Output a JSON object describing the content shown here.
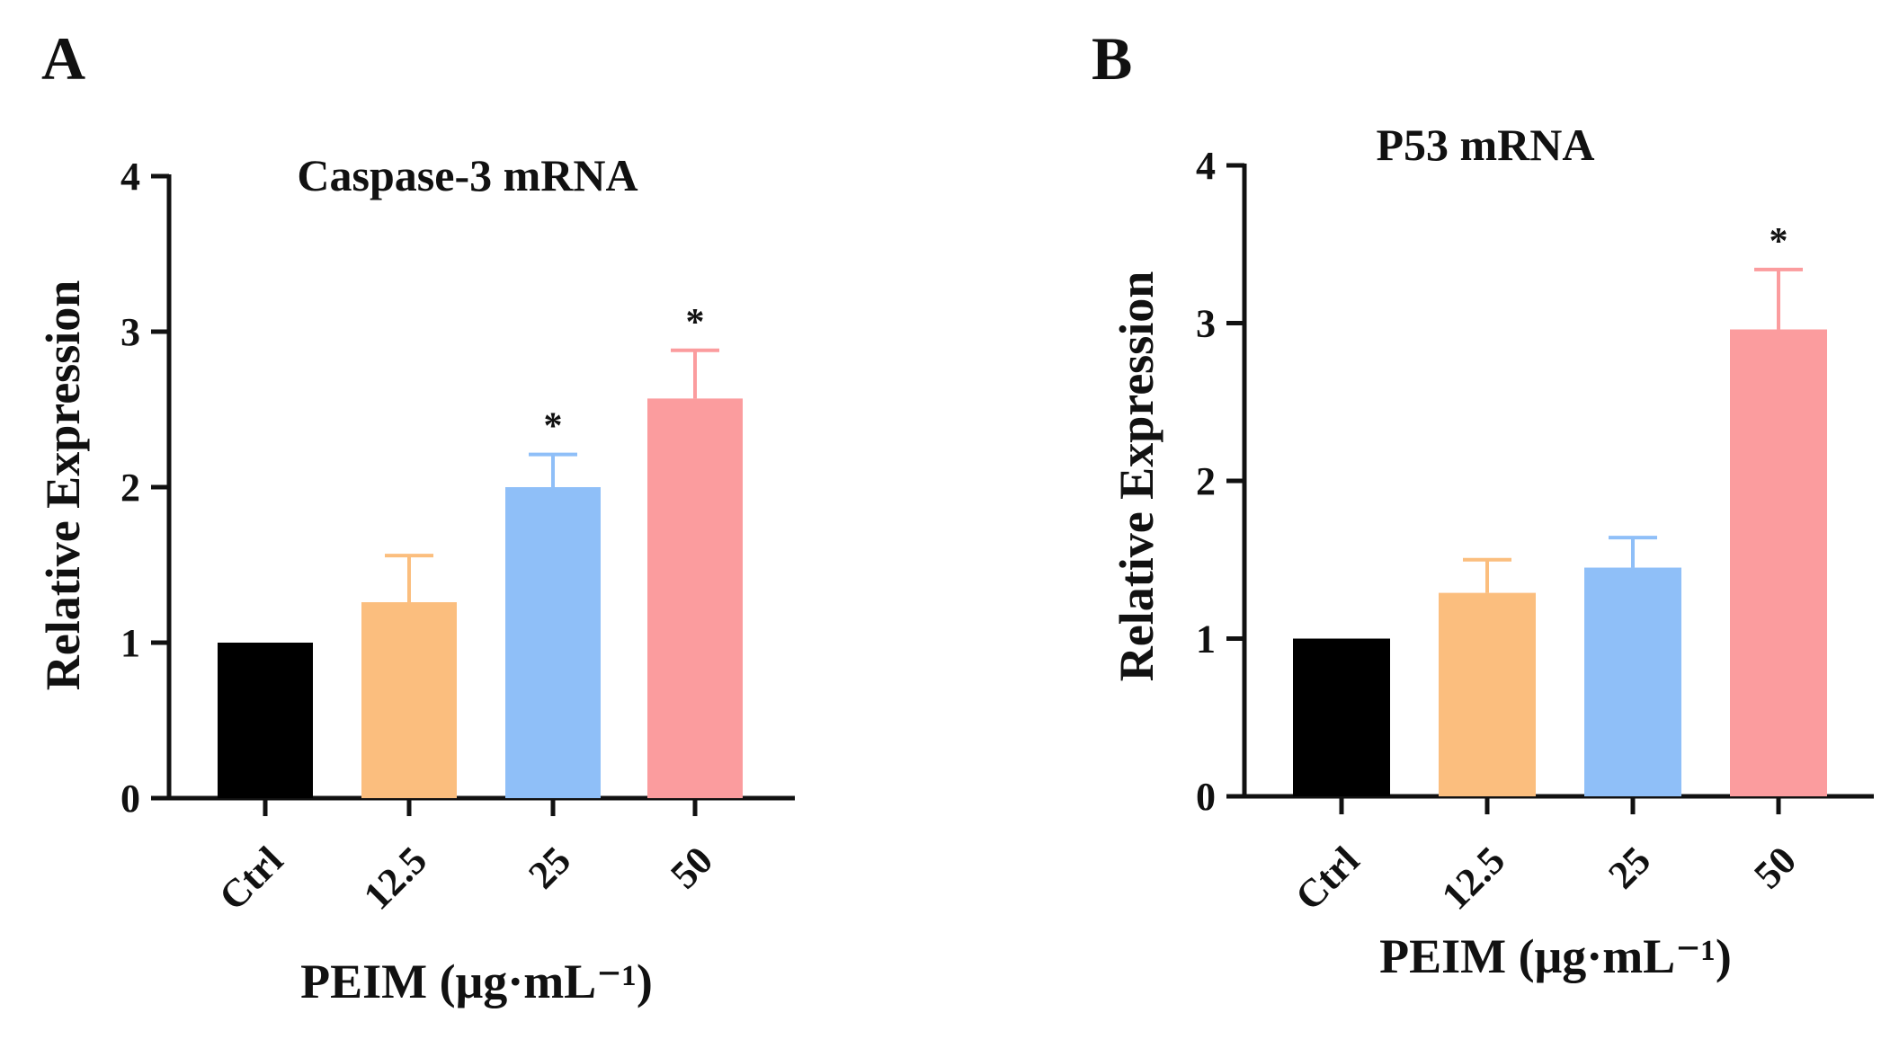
{
  "panels": [
    {
      "label": "A"
    },
    {
      "label": "B"
    }
  ],
  "colors": {
    "Ctrl": "#000000",
    "12.5": "#fbbe7e",
    "25": "#8fbff8",
    "50": "#fb9c9e",
    "axis": "#111111"
  },
  "chart_data": [
    {
      "type": "bar",
      "panel": "A",
      "title": "Caspase-3 mRNA",
      "xlabel": "PEIM (μg·mL⁻¹)",
      "ylabel": "Relative Expression",
      "categories": [
        "Ctrl",
        "12.5",
        "25",
        "50"
      ],
      "values": [
        1.0,
        1.26,
        2.0,
        2.57
      ],
      "errors": [
        0,
        0.3,
        0.21,
        0.31
      ],
      "significance": [
        "",
        "",
        "*",
        "*"
      ],
      "ylim": [
        0,
        4
      ],
      "yticks": [
        "0",
        "1",
        "2",
        "3",
        "4"
      ],
      "grid": false
    },
    {
      "type": "bar",
      "panel": "B",
      "title": "P53 mRNA",
      "xlabel": "PEIM (μg·mL⁻¹)",
      "ylabel": "Relative Expression",
      "categories": [
        "Ctrl",
        "12.5",
        "25",
        "50"
      ],
      "values": [
        1.0,
        1.29,
        1.45,
        2.96
      ],
      "errors": [
        0,
        0.21,
        0.19,
        0.38
      ],
      "significance": [
        "",
        "",
        "",
        "*"
      ],
      "ylim": [
        0,
        4
      ],
      "yticks": [
        "0",
        "1",
        "2",
        "3",
        "4"
      ],
      "grid": false
    }
  ]
}
